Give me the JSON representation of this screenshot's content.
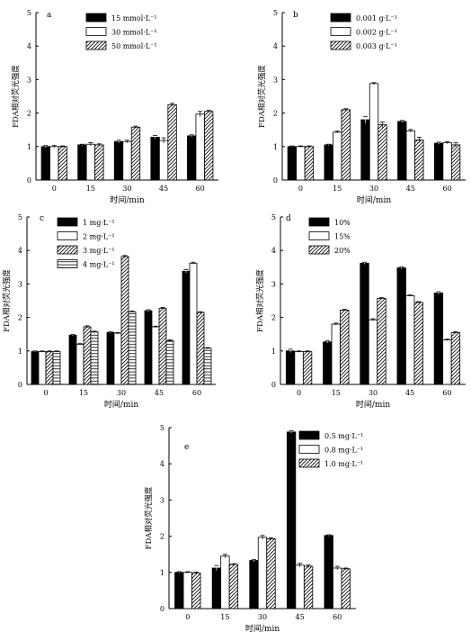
{
  "chart_data": [
    {
      "panel": "a",
      "type": "bar",
      "categories": [
        "0",
        "15",
        "30",
        "45",
        "60"
      ],
      "xlabel": "时间/min",
      "ylabel": "FDA相对荧光强度",
      "ylim": [
        0,
        5
      ],
      "yticks": [
        0,
        1,
        2,
        3,
        4,
        5
      ],
      "legend": "top-left",
      "series": [
        {
          "name": "15 mmol·L⁻¹",
          "pattern": "solid",
          "values": [
            1.0,
            1.05,
            1.15,
            1.28,
            1.32
          ],
          "errors": [
            0.03,
            0.02,
            0.04,
            0.05,
            0.03
          ]
        },
        {
          "name": "30 mmol·L⁻¹",
          "pattern": "open",
          "values": [
            1.0,
            1.07,
            1.15,
            1.18,
            1.97
          ],
          "errors": [
            0.03,
            0.05,
            0.04,
            0.08,
            0.08
          ]
        },
        {
          "name": "50 mmol·L⁻¹",
          "pattern": "hatch",
          "values": [
            1.0,
            1.05,
            1.58,
            2.25,
            2.05
          ],
          "errors": [
            0.02,
            0.03,
            0.03,
            0.04,
            0.03
          ]
        }
      ]
    },
    {
      "panel": "b",
      "type": "bar",
      "categories": [
        "0",
        "15",
        "30",
        "45",
        "60"
      ],
      "xlabel": "时间/min",
      "ylabel": "FDA相对荧光强度",
      "ylim": [
        0,
        5
      ],
      "yticks": [
        0,
        1,
        2,
        3,
        4,
        5
      ],
      "legend": "top-left",
      "series": [
        {
          "name": "0.001 g·L⁻¹",
          "pattern": "solid",
          "values": [
            1.0,
            1.05,
            1.8,
            1.75,
            1.1
          ],
          "errors": [
            0.02,
            0.02,
            0.1,
            0.03,
            0.03
          ]
        },
        {
          "name": "0.002 g·L⁻¹",
          "pattern": "open",
          "values": [
            1.0,
            1.43,
            2.88,
            1.47,
            1.12
          ],
          "errors": [
            0.02,
            0.03,
            0.03,
            0.04,
            0.03
          ]
        },
        {
          "name": "0.003 g·L⁻¹",
          "pattern": "hatch",
          "values": [
            1.0,
            2.1,
            1.65,
            1.2,
            1.05
          ],
          "errors": [
            0.02,
            0.03,
            0.08,
            0.08,
            0.06
          ]
        }
      ]
    },
    {
      "panel": "c",
      "type": "bar",
      "categories": [
        "0",
        "15",
        "30",
        "45",
        "60"
      ],
      "xlabel": "时间/min",
      "ylabel": "FDA相对荧光强度",
      "ylim": [
        0,
        5
      ],
      "yticks": [
        0,
        1,
        2,
        3,
        4,
        5
      ],
      "legend": "top-left",
      "series": [
        {
          "name": "1 mg·L⁻¹",
          "pattern": "solid",
          "values": [
            0.98,
            1.47,
            1.55,
            2.2,
            3.38
          ],
          "errors": [
            0.02,
            0.02,
            0.02,
            0.03,
            0.05
          ]
        },
        {
          "name": "2 mg·L⁻¹",
          "pattern": "open",
          "values": [
            0.98,
            1.2,
            1.53,
            1.72,
            3.62
          ],
          "errors": [
            0.02,
            0.02,
            0.02,
            0.02,
            0.03
          ]
        },
        {
          "name": "3 mg·L⁻¹",
          "pattern": "hatch",
          "values": [
            0.98,
            1.72,
            3.82,
            2.27,
            2.15
          ],
          "errors": [
            0.02,
            0.03,
            0.03,
            0.03,
            0.02
          ]
        },
        {
          "name": "4 mg·L⁻¹",
          "pattern": "hlines",
          "values": [
            0.98,
            1.57,
            2.17,
            1.3,
            1.08
          ],
          "errors": [
            0.02,
            0.02,
            0.02,
            0.03,
            0.02
          ]
        }
      ]
    },
    {
      "panel": "d",
      "type": "bar",
      "categories": [
        "0",
        "15",
        "30",
        "45",
        "60"
      ],
      "xlabel": "时间/min",
      "ylabel": "FDA相对荧光强度",
      "ylim": [
        0,
        5
      ],
      "yticks": [
        0,
        1,
        2,
        3,
        4,
        5
      ],
      "legend": "top-left",
      "series": [
        {
          "name": "10%",
          "pattern": "solid",
          "values": [
            1.0,
            1.27,
            3.62,
            3.48,
            2.73
          ],
          "errors": [
            0.05,
            0.03,
            0.03,
            0.03,
            0.04
          ]
        },
        {
          "name": "15%",
          "pattern": "open",
          "values": [
            0.98,
            1.8,
            1.93,
            2.65,
            1.33
          ],
          "errors": [
            0.02,
            0.03,
            0.03,
            0.02,
            0.02
          ]
        },
        {
          "name": "20%",
          "pattern": "hatch",
          "values": [
            0.98,
            2.22,
            2.57,
            2.45,
            1.55
          ],
          "errors": [
            0.02,
            0.02,
            0.02,
            0.02,
            0.02
          ]
        }
      ]
    },
    {
      "panel": "e",
      "type": "bar",
      "categories": [
        "0",
        "15",
        "30",
        "45",
        "60"
      ],
      "xlabel": "时间/min",
      "ylabel": "FDA相对荧光强度",
      "ylim": [
        0,
        5
      ],
      "yticks": [
        0,
        1,
        2,
        3,
        4,
        5
      ],
      "legend": "top-right",
      "series": [
        {
          "name": "0.5 mg·L⁻¹",
          "pattern": "solid",
          "values": [
            1.0,
            1.12,
            1.33,
            4.88,
            2.02
          ],
          "errors": [
            0.02,
            0.07,
            0.03,
            0.03,
            0.02
          ]
        },
        {
          "name": "0.8 mg·L⁻¹",
          "pattern": "open",
          "values": [
            1.0,
            1.45,
            1.97,
            1.2,
            1.12
          ],
          "errors": [
            0.02,
            0.05,
            0.05,
            0.05,
            0.05
          ]
        },
        {
          "name": "1.0 mg·L⁻¹",
          "pattern": "hatch",
          "values": [
            0.98,
            1.22,
            1.93,
            1.17,
            1.1
          ],
          "errors": [
            0.03,
            0.02,
            0.03,
            0.04,
            0.02
          ]
        }
      ]
    }
  ]
}
